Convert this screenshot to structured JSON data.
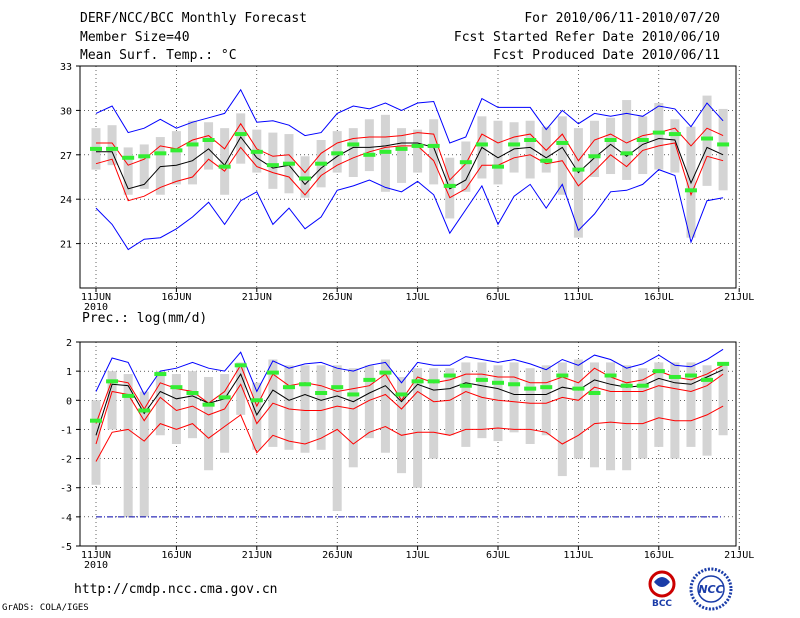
{
  "header": {
    "title": "DERF/NCC/BCC Monthly Forecast",
    "member_size": "Member Size=40",
    "variable": "Mean Surf. Temp.: °C",
    "period": "For 2010/06/11-2010/07/20",
    "start_date": "Fcst Started Refer Date 2010/06/10",
    "produced_date": "Fcst Produced Date 2010/06/11"
  },
  "footer": {
    "url": "http://cmdp.ncc.cma.gov.cn",
    "credit": "GrADS: COLA/IGES",
    "logo_left": "BCC",
    "logo_right": "NCC"
  },
  "colors": {
    "envelope": "#0000ff",
    "spread": "#ff0000",
    "mean": "#000000",
    "obs": "#33ee33",
    "box": "#d4d4d4",
    "grid": "#000000",
    "threshold": "#0000aa"
  },
  "chart_data": [
    {
      "type": "line",
      "title": "Mean Surf. Temp.: °C",
      "xlabel": "",
      "ylabel": "°C",
      "year_label": "2010",
      "xlim": [
        0,
        40
      ],
      "ylim": [
        18,
        33
      ],
      "yticks": [
        21,
        24,
        27,
        30,
        33
      ],
      "xticks": [
        {
          "x": 0,
          "label": "11JUN"
        },
        {
          "x": 5,
          "label": "16JUN"
        },
        {
          "x": 10,
          "label": "21JUN"
        },
        {
          "x": 15,
          "label": "26JUN"
        },
        {
          "x": 20,
          "label": "1JUL"
        },
        {
          "x": 25,
          "label": "6JUL"
        },
        {
          "x": 30,
          "label": "11JUL"
        },
        {
          "x": 35,
          "label": "16JUL"
        },
        {
          "x": 40,
          "label": "21JUL"
        }
      ],
      "x": [
        0,
        1,
        2,
        3,
        4,
        5,
        6,
        7,
        8,
        9,
        10,
        11,
        12,
        13,
        14,
        15,
        16,
        17,
        18,
        19,
        20,
        21,
        22,
        23,
        24,
        25,
        26,
        27,
        28,
        29,
        30,
        31,
        32,
        33,
        34,
        35,
        36,
        37,
        38,
        39
      ],
      "series": [
        {
          "name": "max",
          "color": "#0000ff",
          "values": [
            29.8,
            30.3,
            28.5,
            28.8,
            29.4,
            28.8,
            29.2,
            29.5,
            29.8,
            31.4,
            29.2,
            29.3,
            29.0,
            28.3,
            28.5,
            29.8,
            30.3,
            30.1,
            30.5,
            30.0,
            30.5,
            30.6,
            27.8,
            28.2,
            30.8,
            30.2,
            30.2,
            30.2,
            28.7,
            30.0,
            29.1,
            29.8,
            29.6,
            29.8,
            29.6,
            30.3,
            30.1,
            28.9,
            30.5,
            29.3
          ]
        },
        {
          "name": "upper",
          "color": "#ff0000",
          "values": [
            27.8,
            27.8,
            26.3,
            26.7,
            27.6,
            27.4,
            28.0,
            28.3,
            27.4,
            29.1,
            27.4,
            26.9,
            27.0,
            25.8,
            27.1,
            27.8,
            28.1,
            28.2,
            28.2,
            28.3,
            28.5,
            28.4,
            25.3,
            26.4,
            28.4,
            27.8,
            28.2,
            28.4,
            27.3,
            28.4,
            26.6,
            28.0,
            28.4,
            27.8,
            28.3,
            28.5,
            28.8,
            27.6,
            28.8,
            28.3
          ]
        },
        {
          "name": "mean",
          "color": "#000000",
          "values": [
            27.2,
            27.2,
            24.7,
            25.0,
            26.2,
            26.3,
            26.6,
            27.4,
            26.3,
            28.2,
            26.8,
            26.1,
            26.3,
            25.0,
            26.1,
            26.9,
            27.5,
            27.5,
            27.6,
            27.8,
            27.8,
            27.5,
            24.7,
            25.3,
            27.5,
            26.8,
            27.4,
            27.5,
            26.8,
            27.5,
            25.8,
            26.8,
            27.7,
            26.9,
            27.7,
            28.1,
            28.0,
            25.1,
            27.5,
            27.0
          ]
        },
        {
          "name": "lower",
          "color": "#ff0000",
          "values": [
            26.4,
            26.7,
            23.9,
            24.2,
            24.8,
            25.2,
            25.5,
            26.7,
            25.9,
            27.5,
            26.2,
            25.8,
            25.5,
            24.3,
            25.6,
            26.3,
            26.8,
            27.2,
            27.5,
            27.6,
            27.6,
            26.6,
            24.1,
            24.7,
            26.3,
            26.3,
            26.8,
            27.0,
            26.4,
            26.6,
            24.9,
            25.9,
            27.0,
            26.2,
            27.3,
            27.6,
            27.8,
            24.3,
            26.9,
            26.6
          ]
        },
        {
          "name": "min",
          "color": "#0000ff",
          "values": [
            23.4,
            22.3,
            20.6,
            21.3,
            21.4,
            22.0,
            22.8,
            23.8,
            22.3,
            23.9,
            24.5,
            22.3,
            23.4,
            22.0,
            22.8,
            24.6,
            24.9,
            25.3,
            24.8,
            24.5,
            25.2,
            24.3,
            21.7,
            23.3,
            24.9,
            22.3,
            24.2,
            25.0,
            23.4,
            25.0,
            21.9,
            23.0,
            24.5,
            24.6,
            25.0,
            26.0,
            25.6,
            21.1,
            23.9,
            24.1
          ]
        }
      ],
      "boxes": {
        "low": [
          26.0,
          26.3,
          24.3,
          24.7,
          24.3,
          25.0,
          25.0,
          26.0,
          24.3,
          26.4,
          25.8,
          24.7,
          24.4,
          24.1,
          24.8,
          25.8,
          25.5,
          25.9,
          24.5,
          25.1,
          25.8,
          25.0,
          22.7,
          24.5,
          25.4,
          25.0,
          25.8,
          25.4,
          25.8,
          24.3,
          21.4,
          25.5,
          25.7,
          25.3,
          25.7,
          26.0,
          25.8,
          21.4,
          24.9,
          24.6
        ],
        "high": [
          28.8,
          29.0,
          27.5,
          27.7,
          28.2,
          28.6,
          29.3,
          29.2,
          28.8,
          29.8,
          28.7,
          28.5,
          28.4,
          26.9,
          28.0,
          28.6,
          28.8,
          29.4,
          29.7,
          28.8,
          28.7,
          29.4,
          26.8,
          27.9,
          29.6,
          29.3,
          29.2,
          29.3,
          28.9,
          29.6,
          28.8,
          29.3,
          29.5,
          30.7,
          29.6,
          30.5,
          29.4,
          28.9,
          31.0,
          30.1
        ]
      },
      "observed": [
        27.4,
        27.4,
        26.8,
        26.9,
        27.1,
        27.3,
        27.7,
        28.0,
        26.2,
        28.4,
        27.2,
        26.3,
        26.4,
        25.4,
        26.4,
        27.1,
        27.7,
        27.0,
        27.2,
        27.4,
        27.6,
        27.6,
        24.9,
        26.5,
        27.7,
        26.2,
        27.7,
        28.0,
        26.6,
        27.8,
        26.0,
        26.9,
        28.0,
        27.1,
        28.0,
        28.5,
        28.4,
        24.6,
        28.1,
        27.7
      ]
    },
    {
      "type": "line",
      "title": "Prec.: log(mm/d)",
      "xlabel": "",
      "ylabel": "log(mm/d)",
      "year_label": "2010",
      "xlim": [
        0,
        40
      ],
      "ylim": [
        -5,
        2
      ],
      "yticks": [
        -5,
        -4,
        -3,
        -2,
        -1,
        0,
        1,
        2
      ],
      "xticks": [
        {
          "x": 0,
          "label": "11JUN"
        },
        {
          "x": 5,
          "label": "16JUN"
        },
        {
          "x": 10,
          "label": "21JUN"
        },
        {
          "x": 15,
          "label": "26JUN"
        },
        {
          "x": 20,
          "label": "1JUL"
        },
        {
          "x": 25,
          "label": "6JUL"
        },
        {
          "x": 30,
          "label": "11JUL"
        },
        {
          "x": 35,
          "label": "16JUL"
        },
        {
          "x": 40,
          "label": "21JUL"
        }
      ],
      "threshold": -4,
      "x": [
        0,
        1,
        2,
        3,
        4,
        5,
        6,
        7,
        8,
        9,
        10,
        11,
        12,
        13,
        14,
        15,
        16,
        17,
        18,
        19,
        20,
        21,
        22,
        23,
        24,
        25,
        26,
        27,
        28,
        29,
        30,
        31,
        32,
        33,
        34,
        35,
        36,
        37,
        38,
        39
      ],
      "series": [
        {
          "name": "max",
          "color": "#0000ff",
          "values": [
            0.3,
            1.45,
            1.3,
            0.2,
            1.0,
            1.1,
            1.3,
            1.1,
            1.0,
            1.65,
            0.3,
            1.35,
            1.1,
            1.25,
            1.3,
            1.1,
            1.0,
            1.2,
            1.3,
            0.6,
            1.3,
            1.2,
            1.2,
            1.5,
            1.4,
            1.3,
            1.4,
            1.25,
            1.05,
            1.4,
            1.2,
            1.55,
            1.4,
            1.1,
            1.25,
            1.55,
            1.2,
            1.15,
            1.4,
            1.75
          ]
        },
        {
          "name": "upper",
          "color": "#ff0000",
          "values": [
            -0.8,
            0.7,
            0.6,
            -0.3,
            0.6,
            0.4,
            0.3,
            -0.1,
            0.3,
            1.2,
            -0.2,
            0.9,
            0.5,
            0.6,
            0.5,
            0.3,
            0.4,
            0.5,
            0.9,
            0.0,
            0.8,
            0.6,
            0.7,
            0.9,
            0.9,
            0.8,
            0.8,
            0.6,
            0.6,
            0.8,
            0.6,
            1.1,
            0.8,
            0.6,
            0.7,
            1.0,
            0.8,
            0.7,
            0.9,
            1.2
          ]
        },
        {
          "name": "mean",
          "color": "#000000",
          "values": [
            -1.2,
            0.55,
            0.5,
            -0.45,
            0.3,
            0.05,
            0.15,
            -0.1,
            0.05,
            0.9,
            -0.5,
            0.35,
            0.0,
            0.2,
            0.0,
            0.15,
            -0.05,
            0.25,
            0.5,
            -0.05,
            0.55,
            0.35,
            0.4,
            0.6,
            0.5,
            0.4,
            0.2,
            0.2,
            0.2,
            0.45,
            0.35,
            0.7,
            0.55,
            0.45,
            0.5,
            0.75,
            0.6,
            0.55,
            0.8,
            1.05
          ]
        },
        {
          "name": "lower",
          "color": "#ff0000",
          "values": [
            -1.5,
            0.3,
            0.2,
            -0.7,
            0.1,
            -0.35,
            -0.2,
            -0.5,
            -0.3,
            0.55,
            -0.8,
            -0.1,
            -0.3,
            -0.35,
            -0.35,
            -0.2,
            -0.3,
            0.0,
            0.2,
            -0.3,
            0.3,
            -0.05,
            0.0,
            0.3,
            0.1,
            0.0,
            -0.05,
            -0.1,
            -0.1,
            0.1,
            0.0,
            0.45,
            0.3,
            0.3,
            0.3,
            0.5,
            0.4,
            0.3,
            0.5,
            0.9
          ]
        },
        {
          "name": "min",
          "color": "#ff0000",
          "values": [
            -2.1,
            -1.1,
            -1.0,
            -1.4,
            -0.8,
            -1.0,
            -0.8,
            -1.3,
            -0.9,
            -0.5,
            -1.8,
            -1.2,
            -1.4,
            -1.5,
            -1.3,
            -1.0,
            -1.5,
            -1.1,
            -0.9,
            -1.2,
            -1.1,
            -1.1,
            -1.2,
            -1.0,
            -1.0,
            -0.95,
            -1.0,
            -1.0,
            -1.1,
            -1.5,
            -1.2,
            -0.8,
            -0.75,
            -0.8,
            -0.8,
            -0.6,
            -0.7,
            -0.7,
            -0.5,
            -0.2
          ]
        }
      ],
      "boxes": {
        "low": [
          -2.9,
          -1.0,
          -4.0,
          -4.0,
          -1.2,
          -1.5,
          -1.3,
          -2.4,
          -1.8,
          -0.5,
          -1.7,
          -1.6,
          -1.7,
          -1.8,
          -1.7,
          -3.8,
          -2.3,
          -1.3,
          -1.8,
          -2.5,
          -3.0,
          -2.0,
          -1.2,
          -1.6,
          -1.3,
          -1.4,
          -1.1,
          -1.5,
          -1.2,
          -2.6,
          -2.0,
          -2.3,
          -2.4,
          -2.4,
          -2.0,
          -1.6,
          -2.0,
          -1.6,
          -1.9,
          -1.2
        ],
        "high": [
          0.0,
          1.0,
          0.9,
          0.3,
          1.0,
          0.9,
          1.0,
          0.8,
          0.9,
          1.3,
          0.6,
          1.4,
          1.2,
          1.2,
          1.2,
          1.2,
          1.1,
          1.2,
          1.4,
          0.8,
          1.1,
          1.1,
          1.1,
          1.3,
          1.3,
          1.2,
          1.3,
          1.1,
          1.2,
          1.3,
          1.4,
          1.3,
          1.3,
          1.2,
          1.1,
          1.3,
          1.3,
          1.3,
          1.2,
          1.3
        ]
      },
      "observed": [
        -0.7,
        0.65,
        0.15,
        -0.35,
        0.9,
        0.45,
        0.25,
        -0.15,
        0.1,
        1.2,
        0.0,
        0.95,
        0.45,
        0.55,
        0.25,
        0.45,
        0.2,
        0.7,
        0.95,
        0.2,
        0.65,
        0.65,
        0.85,
        0.5,
        0.7,
        0.6,
        0.55,
        0.4,
        0.45,
        0.85,
        0.4,
        0.25,
        0.85,
        0.5,
        0.5,
        1.0,
        0.8,
        0.85,
        0.7,
        1.25
      ]
    }
  ]
}
